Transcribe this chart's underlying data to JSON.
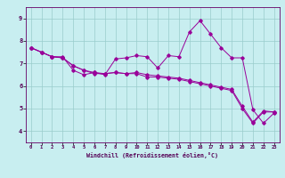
{
  "xlabel": "Windchill (Refroidissement éolien,°C)",
  "background_color": "#c8eef0",
  "line_color": "#990099",
  "grid_color": "#99cccc",
  "xlim": [
    -0.5,
    23.5
  ],
  "ylim": [
    3.5,
    9.5
  ],
  "yticks": [
    4,
    5,
    6,
    7,
    8,
    9
  ],
  "xticks": [
    0,
    1,
    2,
    3,
    4,
    5,
    6,
    7,
    8,
    9,
    10,
    11,
    12,
    13,
    14,
    15,
    16,
    17,
    18,
    19,
    20,
    21,
    22,
    23
  ],
  "series1_x": [
    0,
    1,
    2,
    3,
    4,
    5,
    6,
    7,
    8,
    9,
    10,
    11,
    12,
    13,
    14,
    15,
    16,
    17,
    18,
    19,
    20,
    21,
    22,
    23
  ],
  "series1_y": [
    7.7,
    7.5,
    7.3,
    7.3,
    6.7,
    6.5,
    6.6,
    6.5,
    7.2,
    7.25,
    7.35,
    7.3,
    6.8,
    7.35,
    7.3,
    8.4,
    8.9,
    8.3,
    7.7,
    7.25,
    7.25,
    4.95,
    4.35,
    4.8
  ],
  "series2_x": [
    0,
    1,
    2,
    3,
    4,
    5,
    6,
    7,
    8,
    9,
    10,
    11,
    12,
    13,
    14,
    15,
    16,
    17,
    18,
    19,
    20,
    21,
    22,
    23
  ],
  "series2_y": [
    7.7,
    7.5,
    7.3,
    7.25,
    6.9,
    6.7,
    6.55,
    6.55,
    6.6,
    6.55,
    6.55,
    6.4,
    6.4,
    6.35,
    6.3,
    6.2,
    6.1,
    6.0,
    5.9,
    5.8,
    5.0,
    4.35,
    4.85,
    4.85
  ],
  "series3_x": [
    0,
    1,
    2,
    3,
    4,
    5,
    6,
    7,
    8,
    9,
    10,
    11,
    12,
    13,
    14,
    15,
    16,
    17,
    18,
    19,
    20,
    21,
    22,
    23
  ],
  "series3_y": [
    7.7,
    7.5,
    7.3,
    7.25,
    6.9,
    6.7,
    6.6,
    6.55,
    6.6,
    6.55,
    6.6,
    6.5,
    6.45,
    6.4,
    6.35,
    6.25,
    6.15,
    6.05,
    5.95,
    5.85,
    5.1,
    4.4,
    4.9,
    4.85
  ]
}
